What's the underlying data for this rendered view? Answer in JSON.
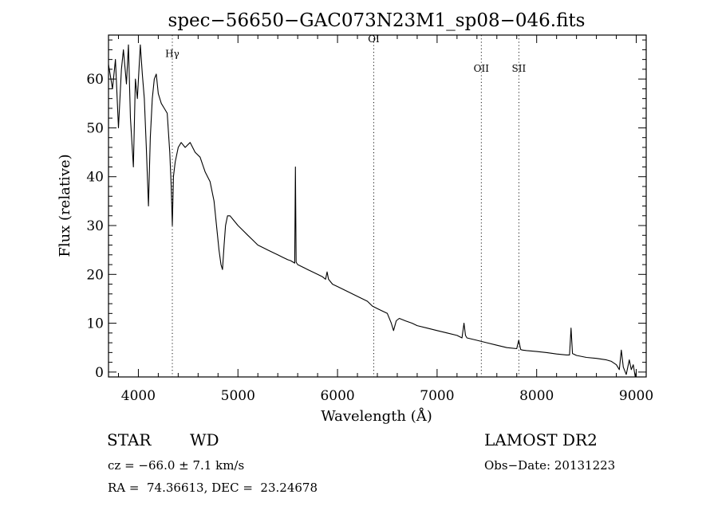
{
  "chart_data": {
    "type": "line",
    "title": "spec−56650−GAC073N23M1_sp08−046.fits",
    "xlabel": "Wavelength (Å)",
    "ylabel": "Flux (relative)",
    "xlim": [
      3700,
      9100
    ],
    "ylim": [
      -1,
      69
    ],
    "x_ticks": [
      4000,
      5000,
      6000,
      7000,
      8000,
      9000
    ],
    "y_ticks": [
      0,
      10,
      20,
      30,
      40,
      50,
      60
    ],
    "grid": false,
    "line_color": "#000000",
    "spectral_lines": [
      {
        "name": "Hγ",
        "wavelength": 4341,
        "label_y": 64.5
      },
      {
        "name": "OI",
        "wavelength": 6364,
        "label_y": 67.5
      },
      {
        "name": "OII",
        "wavelength": 7444,
        "label_y": 61.5
      },
      {
        "name": "SII",
        "wavelength": 7821,
        "label_y": 61.5
      }
    ],
    "series": [
      {
        "x": [
          3700,
          3740,
          3770,
          3800,
          3830,
          3850,
          3880,
          3900,
          3920,
          3950,
          3970,
          3990,
          4020,
          4040,
          4060,
          4080,
          4101,
          4120,
          4140,
          4160,
          4180,
          4200,
          4230,
          4260,
          4290,
          4315,
          4330,
          4341,
          4352,
          4370,
          4400,
          4430,
          4470,
          4520,
          4570,
          4620,
          4670,
          4720,
          4760,
          4790,
          4810,
          4830,
          4845,
          4861,
          4875,
          4895,
          4920,
          4960,
          5000,
          5050,
          5100,
          5150,
          5200,
          5250,
          5300,
          5350,
          5400,
          5450,
          5500,
          5530,
          5555,
          5570,
          5577,
          5584,
          5600,
          5650,
          5700,
          5750,
          5800,
          5850,
          5880,
          5895,
          5910,
          5950,
          6000,
          6100,
          6200,
          6300,
          6350,
          6400,
          6450,
          6500,
          6540,
          6563,
          6590,
          6620,
          6680,
          6750,
          6800,
          6900,
          7000,
          7100,
          7200,
          7250,
          7270,
          7285,
          7300,
          7400,
          7500,
          7600,
          7700,
          7800,
          7820,
          7840,
          7860,
          7900,
          8000,
          8100,
          8200,
          8300,
          8330,
          8345,
          8360,
          8400,
          8500,
          8600,
          8700,
          8750,
          8800,
          8830,
          8850,
          8870,
          8900,
          8930,
          8950,
          8970,
          8990,
          9000
        ],
        "y": [
          63,
          58,
          64,
          50,
          62,
          66,
          59,
          67,
          52,
          42,
          60,
          56,
          67,
          61,
          56,
          46,
          34,
          48,
          56,
          60,
          61,
          57,
          55,
          54,
          53,
          45,
          38,
          30,
          40,
          43,
          46,
          47,
          46,
          47,
          45,
          44,
          41,
          39,
          35,
          29,
          25,
          22,
          21,
          26,
          30,
          32,
          32,
          31,
          30,
          29,
          28,
          27,
          26,
          25.5,
          25,
          24.5,
          24,
          23.5,
          23,
          22.8,
          22.5,
          22.3,
          42,
          22.5,
          22,
          21.5,
          21,
          20.5,
          20,
          19.5,
          19,
          20.5,
          19,
          18,
          17.5,
          16.5,
          15.5,
          14.5,
          13.5,
          13,
          12.5,
          12,
          10,
          8.5,
          10.5,
          11,
          10.5,
          10,
          9.5,
          9,
          8.5,
          8,
          7.5,
          7,
          10,
          7.5,
          7,
          6.5,
          6,
          5.5,
          5,
          4.8,
          6.5,
          4.6,
          4.5,
          4.4,
          4.2,
          4,
          3.7,
          3.5,
          3.5,
          9,
          3.8,
          3.4,
          3,
          2.8,
          2.5,
          2.2,
          1.5,
          0.5,
          4.5,
          1,
          -0.5,
          2.5,
          0.5,
          1.5,
          -1,
          0
        ]
      }
    ]
  },
  "info": {
    "object_class": "STAR",
    "subclass": "WD",
    "survey": "LAMOST DR2",
    "cz": "cz = −66.0 ± 7.1 km/s",
    "obs_date": "Obs−Date: 20131223",
    "coords": "RA =  74.36613, DEC =  23.24678"
  }
}
